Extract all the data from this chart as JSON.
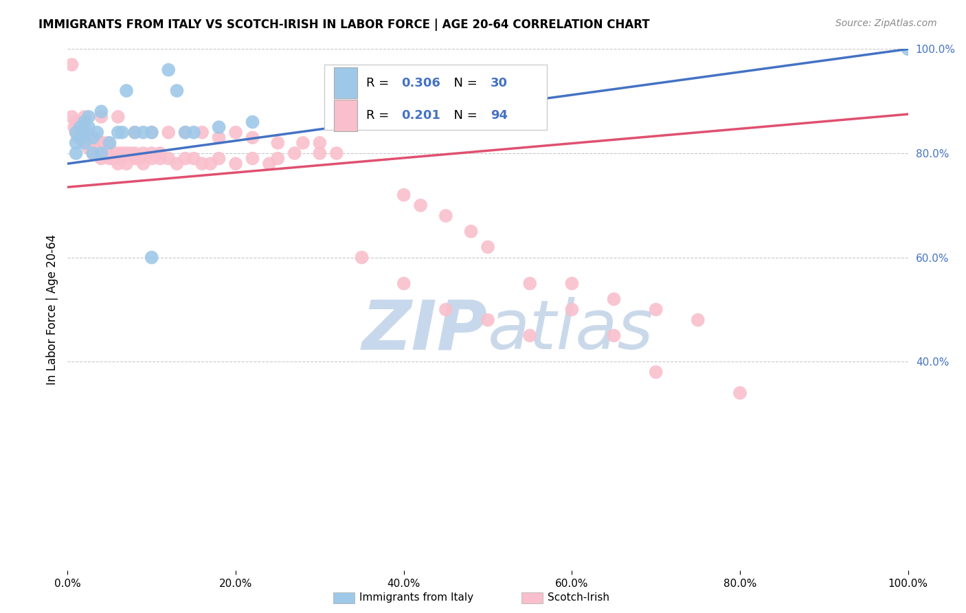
{
  "title": "IMMIGRANTS FROM ITALY VS SCOTCH-IRISH IN LABOR FORCE | AGE 20-64 CORRELATION CHART",
  "source": "Source: ZipAtlas.com",
  "ylabel": "In Labor Force | Age 20-64",
  "xlim": [
    0.0,
    1.0
  ],
  "ylim": [
    0.0,
    1.0
  ],
  "xticks": [
    0.0,
    0.2,
    0.4,
    0.6,
    0.8,
    1.0
  ],
  "yticks": [
    0.4,
    0.6,
    0.8,
    1.0
  ],
  "xticklabels": [
    "0.0%",
    "20.0%",
    "40.0%",
    "60.0%",
    "80.0%",
    "100.0%"
  ],
  "yticklabels": [
    "40.0%",
    "60.0%",
    "80.0%",
    "100.0%"
  ],
  "blue_R": 0.306,
  "blue_N": 30,
  "pink_R": 0.201,
  "pink_N": 94,
  "blue_color": "#9EC8E8",
  "pink_color": "#F9BFCC",
  "blue_line_color": "#4472C4",
  "pink_line_color": "#E05070",
  "watermark_color": "#C8D8EC",
  "legend_label_blue": "Immigrants from Italy",
  "legend_label_pink": "Scotch-Irish",
  "blue_line_x0": 0.0,
  "blue_line_y0": 0.78,
  "blue_line_x1": 1.0,
  "blue_line_y1": 1.0,
  "pink_line_x0": 0.0,
  "pink_line_y0": 0.735,
  "pink_line_x1": 1.0,
  "pink_line_y1": 0.875,
  "blue_x": [
    0.01,
    0.01,
    0.01,
    0.015,
    0.015,
    0.02,
    0.02,
    0.02,
    0.025,
    0.025,
    0.03,
    0.03,
    0.035,
    0.04,
    0.04,
    0.05,
    0.06,
    0.065,
    0.07,
    0.08,
    0.09,
    0.1,
    0.1,
    0.12,
    0.13,
    0.14,
    0.15,
    0.18,
    0.22,
    1.0
  ],
  "blue_y": [
    0.84,
    0.82,
    0.8,
    0.85,
    0.83,
    0.86,
    0.84,
    0.82,
    0.87,
    0.85,
    0.83,
    0.8,
    0.84,
    0.88,
    0.8,
    0.82,
    0.84,
    0.84,
    0.92,
    0.84,
    0.84,
    0.84,
    0.6,
    0.96,
    0.92,
    0.84,
    0.84,
    0.85,
    0.86,
    1.0
  ],
  "pink_x": [
    0.005,
    0.008,
    0.01,
    0.01,
    0.012,
    0.015,
    0.015,
    0.018,
    0.02,
    0.02,
    0.022,
    0.025,
    0.025,
    0.028,
    0.03,
    0.03,
    0.032,
    0.035,
    0.035,
    0.038,
    0.04,
    0.04,
    0.042,
    0.045,
    0.045,
    0.048,
    0.05,
    0.05,
    0.055,
    0.055,
    0.06,
    0.06,
    0.065,
    0.065,
    0.07,
    0.07,
    0.075,
    0.08,
    0.08,
    0.085,
    0.09,
    0.09,
    0.1,
    0.1,
    0.11,
    0.11,
    0.12,
    0.13,
    0.14,
    0.15,
    0.16,
    0.17,
    0.18,
    0.2,
    0.22,
    0.24,
    0.25,
    0.27,
    0.3,
    0.32,
    0.005,
    0.02,
    0.04,
    0.06,
    0.08,
    0.1,
    0.12,
    0.14,
    0.16,
    0.18,
    0.2,
    0.22,
    0.25,
    0.28,
    0.3,
    0.35,
    0.4,
    0.45,
    0.5,
    0.55,
    0.6,
    0.65,
    0.7,
    0.75,
    0.4,
    0.42,
    0.45,
    0.48,
    0.5,
    0.55,
    0.6,
    0.65,
    0.7,
    0.8
  ],
  "pink_y": [
    0.87,
    0.85,
    0.86,
    0.84,
    0.83,
    0.85,
    0.83,
    0.84,
    0.83,
    0.82,
    0.84,
    0.82,
    0.81,
    0.83,
    0.82,
    0.8,
    0.83,
    0.82,
    0.8,
    0.82,
    0.81,
    0.79,
    0.82,
    0.81,
    0.8,
    0.82,
    0.81,
    0.79,
    0.8,
    0.79,
    0.8,
    0.78,
    0.8,
    0.79,
    0.8,
    0.78,
    0.8,
    0.8,
    0.79,
    0.79,
    0.8,
    0.78,
    0.8,
    0.79,
    0.8,
    0.79,
    0.79,
    0.78,
    0.79,
    0.79,
    0.78,
    0.78,
    0.79,
    0.78,
    0.79,
    0.78,
    0.79,
    0.8,
    0.82,
    0.8,
    0.97,
    0.87,
    0.87,
    0.87,
    0.84,
    0.84,
    0.84,
    0.84,
    0.84,
    0.83,
    0.84,
    0.83,
    0.82,
    0.82,
    0.8,
    0.6,
    0.55,
    0.5,
    0.48,
    0.45,
    0.55,
    0.52,
    0.5,
    0.48,
    0.72,
    0.7,
    0.68,
    0.65,
    0.62,
    0.55,
    0.5,
    0.45,
    0.38,
    0.34
  ]
}
